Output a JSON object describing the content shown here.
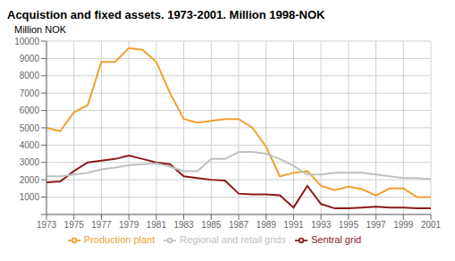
{
  "chart_data": {
    "type": "line",
    "title": "Acquistion and fixed assets. 1973-2001. Million 1998-NOK",
    "y_label": "Million NOK",
    "x": [
      1973,
      1974,
      1975,
      1976,
      1977,
      1978,
      1979,
      1980,
      1981,
      1982,
      1983,
      1984,
      1985,
      1986,
      1987,
      1988,
      1989,
      1990,
      1991,
      1992,
      1993,
      1994,
      1995,
      1996,
      1997,
      1998,
      1999,
      2000,
      2001
    ],
    "series": [
      {
        "name": "Production plant",
        "color": "#f0a030",
        "values": [
          5000,
          4800,
          5900,
          6300,
          8800,
          8800,
          9600,
          9500,
          8800,
          7000,
          5500,
          5300,
          5400,
          5500,
          5500,
          5000,
          3900,
          2200,
          2400,
          2500,
          1650,
          1400,
          1600,
          1450,
          1100,
          1500,
          1500,
          1000,
          1000
        ]
      },
      {
        "name": "Sentral grid",
        "color": "#8b1a1a",
        "values": [
          1850,
          1900,
          2500,
          3000,
          3100,
          3200,
          3400,
          3200,
          3000,
          2900,
          2200,
          2100,
          2000,
          1950,
          1200,
          1150,
          1150,
          1100,
          400,
          1650,
          600,
          350,
          350,
          400,
          450,
          400,
          400,
          350,
          350
        ]
      },
      {
        "name": "Regional and retail grids",
        "color": "#c0c0c0",
        "values": [
          2200,
          2200,
          2300,
          2400,
          2600,
          2700,
          2850,
          2900,
          2950,
          2750,
          2500,
          2500,
          3200,
          3200,
          3600,
          3600,
          3500,
          3200,
          2800,
          2300,
          2300,
          2400,
          2400,
          2400,
          2300,
          2200,
          2100,
          2100,
          2050
        ]
      }
    ],
    "xlim": [
      1973,
      2001
    ],
    "xticks": [
      1973,
      1975,
      1977,
      1979,
      1981,
      1983,
      1985,
      1987,
      1989,
      1991,
      1993,
      1995,
      1997,
      1999,
      2001
    ],
    "ylim": [
      0,
      10000
    ],
    "yticks": [
      {
        "value": 0,
        "label": ""
      },
      1000,
      2000,
      3000,
      4000,
      5000,
      6000,
      7000,
      8000,
      9000,
      10000
    ],
    "grid": true,
    "legend": "bottom"
  }
}
